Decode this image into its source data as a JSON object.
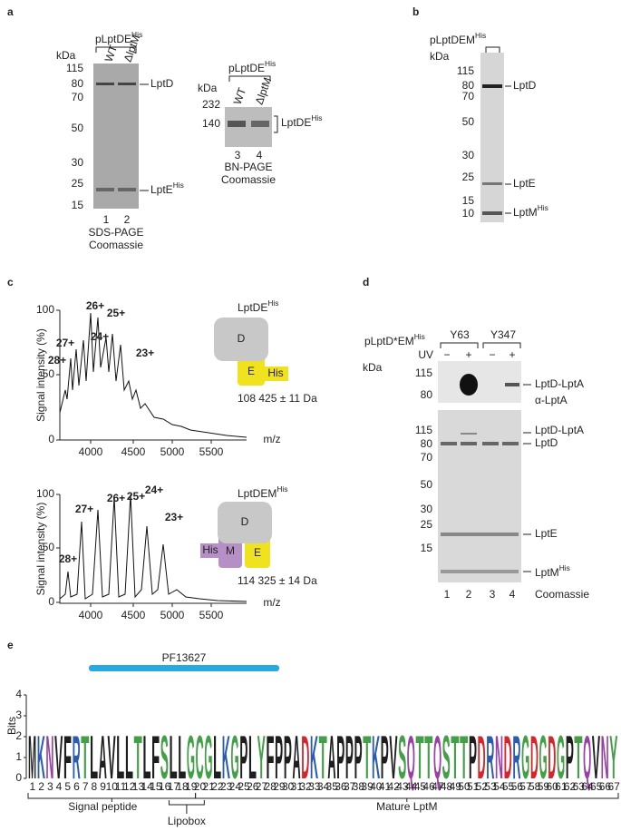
{
  "a": {
    "label": "a",
    "construct": {
      "text": "pLptDE",
      "sup": "His"
    },
    "lanes": [
      "WT",
      "ΔlptM"
    ],
    "kda": "kDa",
    "markers": [
      "115",
      "80",
      "70",
      "50",
      "30",
      "25",
      "15"
    ],
    "bands": [
      {
        "text": "LptD",
        "sup": ""
      },
      {
        "text": "LptE",
        "sup": "His"
      }
    ],
    "lane_numbers": [
      "1",
      "2"
    ],
    "method": [
      "SDS-PAGE",
      "Coomassie"
    ]
  },
  "a_bn": {
    "construct": {
      "text": "pLptDE",
      "sup": "His"
    },
    "lanes": [
      "WT",
      "ΔlptM"
    ],
    "kda": "kDa",
    "markers": [
      "232",
      "140"
    ],
    "band": {
      "text": "LptDE",
      "sup": "His"
    },
    "lane_numbers": [
      "3",
      "4"
    ],
    "method": [
      "BN-PAGE",
      "Coomassie"
    ]
  },
  "b": {
    "label": "b",
    "construct": {
      "text": "pLptDEM",
      "sup": "His"
    },
    "kda": "kDa",
    "markers": [
      "115",
      "80",
      "70",
      "50",
      "30",
      "25",
      "15",
      "10"
    ],
    "bands": [
      {
        "text": "LptD",
        "sup": ""
      },
      {
        "text": "LptE",
        "sup": ""
      },
      {
        "text": "LptM",
        "sup": "His"
      }
    ]
  },
  "c": {
    "label": "c",
    "y_label": "Signal intensity (%)",
    "x_label": "m/z",
    "spectra": [
      {
        "yticks": [
          "0",
          "50",
          "100"
        ],
        "xticks": [
          "4000",
          "4500",
          "5000",
          "5500"
        ],
        "peaks": [
          "28+",
          "27+",
          "26+",
          "25+",
          "24+",
          "23+"
        ],
        "complex": {
          "text": "LptDE",
          "sup": "His"
        },
        "subunits": [
          "D",
          "E",
          "His"
        ],
        "mass": "108 425 ± 11 Da"
      },
      {
        "yticks": [
          "0",
          "50",
          "100"
        ],
        "xticks": [
          "4000",
          "4500",
          "5000",
          "5500"
        ],
        "peaks": [
          "28+",
          "27+",
          "26+",
          "25+",
          "24+",
          "23+"
        ],
        "complex": {
          "text": "LptDEM",
          "sup": "His"
        },
        "subunits": [
          "D",
          "M",
          "E",
          "His"
        ],
        "mass": "114 325 ± 14 Da"
      }
    ]
  },
  "d": {
    "label": "d",
    "construct": {
      "text": "pLptD*EM",
      "sup": "His"
    },
    "mutants": [
      "Y63",
      "Y347"
    ],
    "uv": "UV",
    "uv_states": [
      "−",
      "+",
      "−",
      "+"
    ],
    "kda": "kDa",
    "top_markers": [
      "115",
      "80"
    ],
    "top_labels": [
      "LptD-LptA",
      "α-LptA"
    ],
    "bottom_markers": [
      "115",
      "80",
      "70",
      "50",
      "30",
      "25",
      "15"
    ],
    "bottom_labels": [
      {
        "text": "LptD-LptA",
        "sup": ""
      },
      {
        "text": "LptD",
        "sup": ""
      },
      {
        "text": "LptE",
        "sup": ""
      },
      {
        "text": "LptM",
        "sup": "His"
      }
    ],
    "lane_numbers": [
      "1",
      "2",
      "3",
      "4"
    ],
    "method": "Coomassie"
  },
  "e": {
    "label": "e",
    "domain": "PF13627",
    "y_label": "Bits",
    "yticks": [
      "0",
      "1",
      "2",
      "3",
      "4"
    ],
    "consensus": "MKNVFRTLAVLLTLFSLLGCGLKGPLYFPPADKTAPPPTKPVSQTTQSTTPDRNDRGDGDGPTQVNY",
    "positions": [
      1,
      2,
      3,
      4,
      5,
      6,
      7,
      8,
      9,
      10,
      11,
      12,
      13,
      14,
      15,
      16,
      17,
      18,
      19,
      20,
      21,
      22,
      23,
      24,
      25,
      26,
      27,
      28,
      29,
      30,
      31,
      32,
      33,
      34,
      35,
      36,
      37,
      38,
      39,
      40,
      41,
      42,
      43,
      44,
      45,
      46,
      47,
      48,
      49,
      50,
      51,
      52,
      53,
      54,
      55,
      56,
      57,
      58,
      59,
      60,
      61,
      62,
      63,
      64,
      65,
      66,
      67
    ],
    "regions": [
      "Signal peptide",
      "Lipobox",
      "Mature LptM"
    ]
  }
}
